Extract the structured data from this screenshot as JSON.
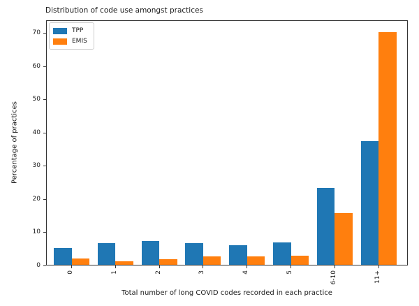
{
  "chart_data": {
    "type": "bar",
    "title": "Distribution of code use amongst practices",
    "xlabel": "Total number of long COVID codes recorded in each practice",
    "ylabel": "Percentage of practices",
    "categories": [
      "0",
      "1",
      "2",
      "3",
      "4",
      "5",
      "6-10",
      "11+"
    ],
    "series": [
      {
        "name": "TPP",
        "color": "#1f77b4",
        "values": [
          5.3,
          6.8,
          7.4,
          6.7,
          6.1,
          7.0,
          23.3,
          37.5
        ]
      },
      {
        "name": "EMIS",
        "color": "#ff7f0e",
        "values": [
          2.1,
          1.3,
          2.0,
          2.8,
          2.7,
          3.0,
          15.8,
          70.5
        ]
      }
    ],
    "ylim": [
      0,
      74
    ],
    "yticks": [
      0,
      10,
      20,
      30,
      40,
      50,
      60,
      70
    ],
    "grid": false,
    "legend_position": "upper left"
  }
}
